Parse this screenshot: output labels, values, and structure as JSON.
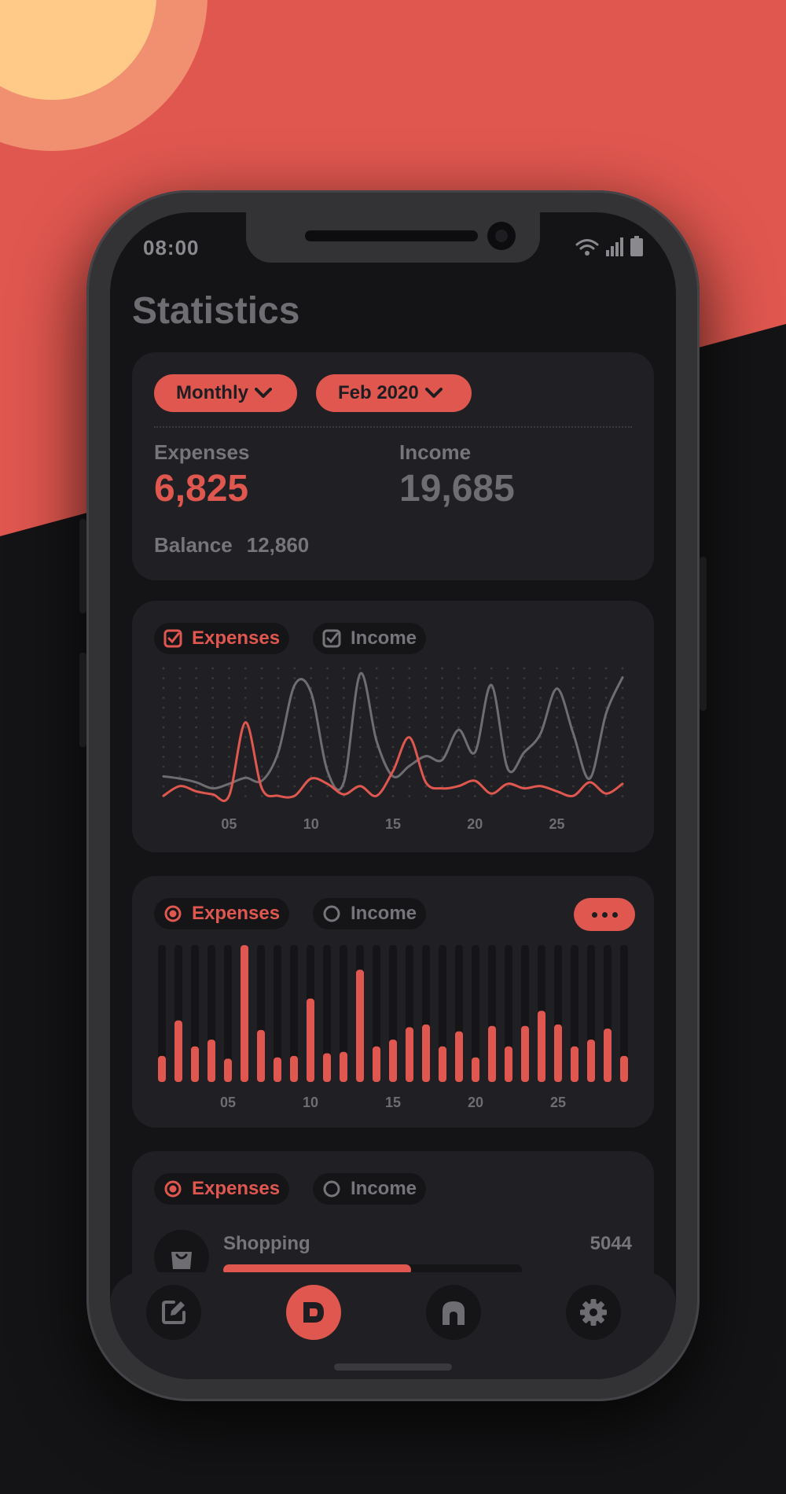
{
  "status": {
    "time": "08:00"
  },
  "page_title": "Statistics",
  "colors": {
    "accent": "#e0574f",
    "muted": "#75757a",
    "card": "#202024",
    "bg": "#141416",
    "sun": "#ffc988"
  },
  "summary": {
    "period_select": "Monthly",
    "month_select": "Feb 2020",
    "expenses_label": "Expenses",
    "expenses_value": "6,825",
    "income_label": "Income",
    "income_value": "19,685",
    "balance_label": "Balance",
    "balance_value": "12,860"
  },
  "line_chart": {
    "expenses_toggle": "Expenses",
    "income_toggle": "Income",
    "x_ticks": [
      "05",
      "10",
      "15",
      "20",
      "25"
    ]
  },
  "bar_chart": {
    "expenses_toggle": "Expenses",
    "income_toggle": "Income",
    "x_ticks": [
      "05",
      "10",
      "15",
      "20",
      "25"
    ]
  },
  "categories_card": {
    "expenses_toggle": "Expenses",
    "income_toggle": "Income",
    "items": [
      {
        "name": "Shopping",
        "amount": "5044",
        "icon": "shopping-bag-icon",
        "share": 0.63
      }
    ]
  },
  "nav": {
    "items": [
      {
        "name": "edit",
        "icon": "edit-icon"
      },
      {
        "name": "statistics",
        "icon": "stats-icon",
        "active": true
      },
      {
        "name": "home",
        "icon": "home-icon"
      },
      {
        "name": "settings",
        "icon": "gear-icon"
      }
    ]
  },
  "chart_data": [
    {
      "type": "line",
      "x": [
        1,
        2,
        3,
        4,
        5,
        6,
        7,
        8,
        9,
        10,
        11,
        12,
        13,
        14,
        15,
        16,
        17,
        18,
        19,
        20,
        21,
        22,
        23,
        24,
        25,
        26,
        27,
        28,
        29
      ],
      "xticks": [
        "05",
        "10",
        "15",
        "20",
        "25"
      ],
      "series": [
        {
          "name": "Expenses",
          "color": "#e0574f",
          "values": [
            2,
            15,
            8,
            4,
            2,
            100,
            12,
            2,
            2,
            25,
            18,
            4,
            15,
            2,
            35,
            80,
            20,
            12,
            15,
            22,
            5,
            18,
            12,
            15,
            8,
            2,
            20,
            5,
            18
          ]
        },
        {
          "name": "Income",
          "color": "#6e6e72",
          "values": [
            28,
            25,
            20,
            12,
            18,
            26,
            22,
            60,
            150,
            140,
            35,
            20,
            165,
            75,
            28,
            42,
            55,
            50,
            90,
            60,
            150,
            38,
            60,
            85,
            145,
            85,
            25,
            112,
            160
          ]
        }
      ]
    },
    {
      "type": "bar",
      "x": [
        1,
        2,
        3,
        4,
        5,
        6,
        7,
        8,
        9,
        10,
        11,
        12,
        13,
        14,
        15,
        16,
        17,
        18,
        19,
        20,
        21,
        22,
        23,
        24,
        25,
        26,
        27,
        28,
        29
      ],
      "xticks": [
        "05",
        "10",
        "15",
        "20",
        "25"
      ],
      "series": [
        {
          "name": "Expenses",
          "values": [
            19,
            45,
            26,
            31,
            17,
            100,
            38,
            18,
            19,
            61,
            21,
            22,
            82,
            26,
            31,
            40,
            42,
            26,
            37,
            18,
            41,
            26,
            41,
            52,
            42,
            26,
            31,
            39,
            19
          ]
        }
      ]
    }
  ]
}
